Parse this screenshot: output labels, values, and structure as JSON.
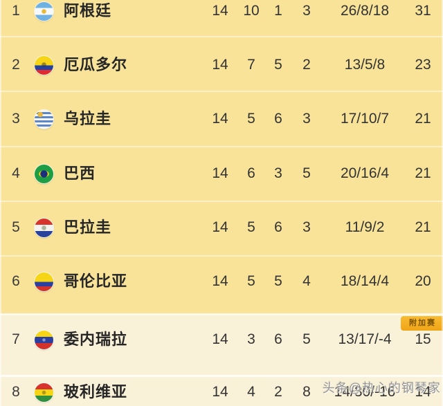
{
  "colors": {
    "bg_yellow": "#f8e399",
    "bg_cream": "#faf2d8",
    "text": "#333333",
    "badge_orange": "#f0a416",
    "badge_orange_light": "#f8bc33",
    "badge_text": "#7c5200",
    "watermark": "#969696"
  },
  "table": {
    "rows": [
      {
        "rank": "1",
        "flag": "argentina",
        "team": "阿根廷",
        "played": "14",
        "won": "10",
        "drawn": "1",
        "lost": "3",
        "goals": "26/8/18",
        "points": "31"
      },
      {
        "rank": "2",
        "flag": "ecuador",
        "team": "厄瓜多尔",
        "played": "14",
        "won": "7",
        "drawn": "5",
        "lost": "2",
        "goals": "13/5/8",
        "points": "23"
      },
      {
        "rank": "3",
        "flag": "uruguay",
        "team": "乌拉圭",
        "played": "14",
        "won": "5",
        "drawn": "6",
        "lost": "3",
        "goals": "17/10/7",
        "points": "21"
      },
      {
        "rank": "4",
        "flag": "brazil",
        "team": "巴西",
        "played": "14",
        "won": "6",
        "drawn": "3",
        "lost": "5",
        "goals": "20/16/4",
        "points": "21"
      },
      {
        "rank": "5",
        "flag": "paraguay",
        "team": "巴拉圭",
        "played": "14",
        "won": "5",
        "drawn": "6",
        "lost": "3",
        "goals": "11/9/2",
        "points": "21"
      },
      {
        "rank": "6",
        "flag": "colombia",
        "team": "哥伦比亚",
        "played": "14",
        "won": "5",
        "drawn": "5",
        "lost": "4",
        "goals": "18/14/4",
        "points": "20"
      },
      {
        "rank": "7",
        "flag": "venezuela",
        "team": "委内瑞拉",
        "played": "14",
        "won": "3",
        "drawn": "6",
        "lost": "5",
        "goals": "13/17/-4",
        "points": "15"
      },
      {
        "rank": "8",
        "flag": "bolivia",
        "team": "玻利维亚",
        "played": "14",
        "won": "4",
        "drawn": "2",
        "lost": "8",
        "goals": "14/30/-16",
        "points": "14"
      }
    ]
  },
  "playoff_badge": {
    "label": "附加赛"
  },
  "watermark": {
    "text": "头条@热心的钢琴家"
  }
}
